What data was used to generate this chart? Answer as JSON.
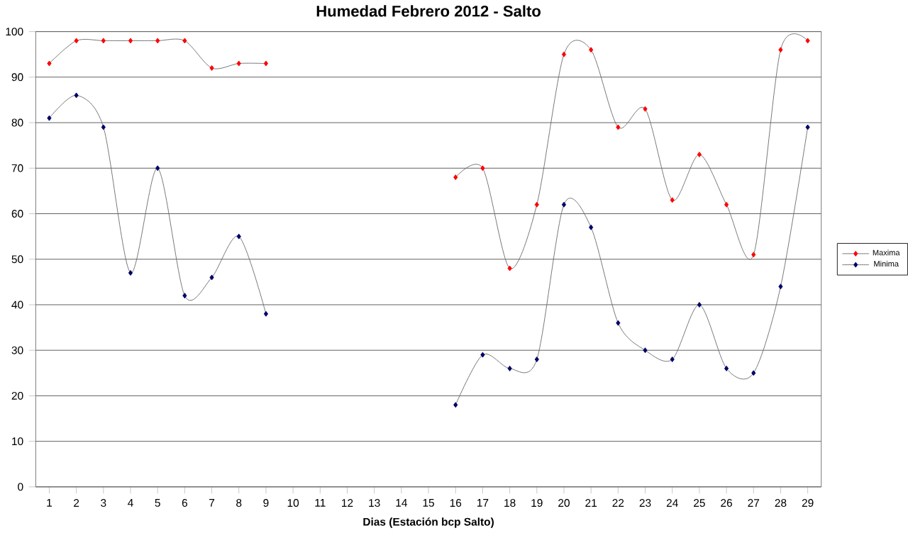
{
  "chart_data": {
    "type": "line",
    "title": "Humedad Febrero 2012 - Salto",
    "xlabel": "Dias (Estación bcp Salto)",
    "categories": [
      "1",
      "2",
      "3",
      "4",
      "5",
      "6",
      "7",
      "8",
      "9",
      "10",
      "11",
      "12",
      "13",
      "14",
      "15",
      "16",
      "17",
      "18",
      "19",
      "20",
      "21",
      "22",
      "23",
      "24",
      "25",
      "26",
      "27",
      "28",
      "29"
    ],
    "series": [
      {
        "name": "Maxima",
        "color": "#ff0000",
        "values": [
          93,
          98,
          98,
          98,
          98,
          98,
          92,
          93,
          93,
          null,
          null,
          null,
          null,
          null,
          null,
          68,
          70,
          48,
          62,
          95,
          96,
          79,
          83,
          63,
          73,
          62,
          51,
          96,
          98
        ]
      },
      {
        "name": "Minima",
        "color": "#000066",
        "values": [
          81,
          86,
          79,
          47,
          70,
          42,
          46,
          55,
          38,
          null,
          null,
          null,
          null,
          null,
          null,
          18,
          29,
          26,
          28,
          62,
          57,
          36,
          30,
          28,
          40,
          26,
          25,
          44,
          79
        ]
      }
    ],
    "ylim": [
      0,
      100
    ],
    "yticks": [
      0,
      10,
      20,
      30,
      40,
      50,
      60,
      70,
      80,
      90,
      100
    ],
    "grid": "y",
    "legend": "right",
    "marker": "diamond",
    "line_style": "solid"
  }
}
